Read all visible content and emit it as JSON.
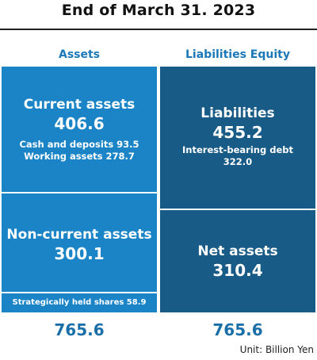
{
  "title": "End of March 31. 2023",
  "unit": "Unit: Billion Yen",
  "chart_data": {
    "type": "table",
    "title": "End of March 31. 2023",
    "columns": [
      {
        "header": "Assets",
        "total": "765.6",
        "blocks": [
          {
            "name": "Current assets",
            "value": "406.6",
            "details": [
              "Cash and deposits 93.5",
              "Working assets 278.7"
            ]
          },
          {
            "name": "Non-current assets",
            "value": "300.1",
            "details": []
          },
          {
            "name": "",
            "value": "",
            "details": [
              "Strategically held shares 58.9"
            ]
          }
        ]
      },
      {
        "header": "Liabilities Equity",
        "total": "765.6",
        "blocks": [
          {
            "name": "Liabilities",
            "value": "455.2",
            "details": [
              "Interest-bearing debt",
              "322.0"
            ]
          },
          {
            "name": "Net assets",
            "value": "310.4",
            "details": []
          }
        ]
      }
    ],
    "colors": {
      "assets": "#1a84c6",
      "liabilities_equity": "#185b86",
      "header_text": "#1a78b8"
    }
  }
}
